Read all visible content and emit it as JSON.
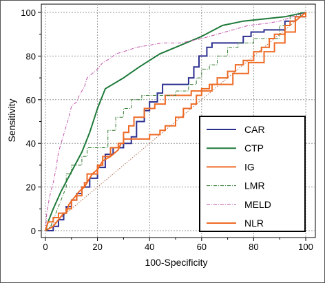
{
  "chart_data": {
    "type": "line",
    "xlabel": "100-Specificity",
    "ylabel": "Sensitivity",
    "xlim": [
      0,
      100
    ],
    "ylim": [
      0,
      100
    ],
    "x_ticks": [
      "0",
      "20",
      "40",
      "60",
      "80",
      "100"
    ],
    "y_ticks": [
      "0",
      "20",
      "40",
      "60",
      "80",
      "100"
    ],
    "grid": true,
    "legend_position": "bottom-right",
    "reference_line": {
      "from": [
        0,
        0
      ],
      "to": [
        100,
        100
      ],
      "color": "#b06a4a",
      "style": "dotted"
    },
    "series": [
      {
        "name": "CAR",
        "color": "#2b2f8f",
        "style": "solid",
        "points": [
          [
            0,
            0
          ],
          [
            3,
            0
          ],
          [
            3,
            2
          ],
          [
            5,
            2
          ],
          [
            5,
            5
          ],
          [
            7,
            5
          ],
          [
            7,
            8
          ],
          [
            8,
            8
          ],
          [
            8,
            11
          ],
          [
            10,
            11
          ],
          [
            10,
            14
          ],
          [
            12,
            14
          ],
          [
            12,
            17
          ],
          [
            14,
            17
          ],
          [
            14,
            20
          ],
          [
            17,
            20
          ],
          [
            17,
            24
          ],
          [
            20,
            24
          ],
          [
            20,
            29
          ],
          [
            23,
            29
          ],
          [
            23,
            35
          ],
          [
            26,
            35
          ],
          [
            26,
            38
          ],
          [
            30,
            38
          ],
          [
            30,
            40
          ],
          [
            33,
            40
          ],
          [
            33,
            43
          ],
          [
            35,
            43
          ],
          [
            35,
            50
          ],
          [
            38,
            50
          ],
          [
            38,
            55
          ],
          [
            40,
            55
          ],
          [
            40,
            59
          ],
          [
            43,
            59
          ],
          [
            43,
            63
          ],
          [
            45,
            63
          ],
          [
            45,
            67
          ],
          [
            55,
            67
          ],
          [
            55,
            70
          ],
          [
            57,
            70
          ],
          [
            57,
            75
          ],
          [
            59,
            75
          ],
          [
            59,
            80
          ],
          [
            62,
            80
          ],
          [
            62,
            84
          ],
          [
            64,
            84
          ],
          [
            64,
            86
          ],
          [
            76,
            86
          ],
          [
            76,
            89
          ],
          [
            79,
            89
          ],
          [
            79,
            91
          ],
          [
            84,
            91
          ],
          [
            84,
            92
          ],
          [
            92,
            92
          ],
          [
            92,
            96
          ],
          [
            96,
            96
          ],
          [
            96,
            98
          ],
          [
            100,
            98
          ],
          [
            100,
            100
          ]
        ]
      },
      {
        "name": "CTP",
        "color": "#1f7a3a",
        "style": "solid",
        "points": [
          [
            0,
            0
          ],
          [
            1,
            4
          ],
          [
            3,
            10
          ],
          [
            6,
            18
          ],
          [
            10,
            27
          ],
          [
            14,
            36
          ],
          [
            17,
            45
          ],
          [
            20,
            56
          ],
          [
            23,
            65
          ],
          [
            30,
            70
          ],
          [
            36,
            75
          ],
          [
            44,
            81
          ],
          [
            52,
            85
          ],
          [
            60,
            89
          ],
          [
            68,
            94
          ],
          [
            76,
            96
          ],
          [
            84,
            97
          ],
          [
            92,
            98
          ],
          [
            100,
            100
          ]
        ]
      },
      {
        "name": "IG",
        "color": "#ee6a24",
        "style": "solid",
        "points": [
          [
            0,
            0
          ],
          [
            3,
            2
          ],
          [
            5,
            5
          ],
          [
            7,
            8
          ],
          [
            8,
            8
          ],
          [
            9,
            12
          ],
          [
            11,
            15
          ],
          [
            13,
            18
          ],
          [
            15,
            20
          ],
          [
            18,
            26
          ],
          [
            20,
            28
          ],
          [
            22,
            32
          ],
          [
            25,
            34
          ],
          [
            28,
            37
          ],
          [
            29,
            40
          ],
          [
            30,
            40
          ],
          [
            30,
            45
          ],
          [
            32,
            45
          ],
          [
            32,
            48
          ],
          [
            34,
            48
          ],
          [
            34,
            52
          ],
          [
            38,
            52
          ],
          [
            38,
            56
          ],
          [
            42,
            56
          ],
          [
            42,
            58
          ],
          [
            46,
            58
          ],
          [
            46,
            62
          ],
          [
            56,
            62
          ],
          [
            56,
            64
          ],
          [
            64,
            64
          ],
          [
            64,
            67
          ],
          [
            72,
            67
          ],
          [
            72,
            72
          ],
          [
            78,
            72
          ],
          [
            78,
            77
          ],
          [
            84,
            77
          ],
          [
            84,
            82
          ],
          [
            88,
            82
          ],
          [
            88,
            86
          ],
          [
            92,
            86
          ],
          [
            92,
            91
          ],
          [
            96,
            91
          ],
          [
            96,
            96
          ],
          [
            100,
            100
          ]
        ]
      },
      {
        "name": "LMR",
        "color": "#2f7a2f",
        "style": "dashdot",
        "points": [
          [
            0,
            0
          ],
          [
            2,
            2
          ],
          [
            4,
            8
          ],
          [
            6,
            14
          ],
          [
            8,
            20
          ],
          [
            8,
            26
          ],
          [
            10,
            26
          ],
          [
            10,
            30
          ],
          [
            14,
            30
          ],
          [
            14,
            34
          ],
          [
            16,
            34
          ],
          [
            16,
            38
          ],
          [
            24,
            38
          ],
          [
            24,
            46
          ],
          [
            27,
            46
          ],
          [
            27,
            52
          ],
          [
            30,
            52
          ],
          [
            30,
            56
          ],
          [
            33,
            56
          ],
          [
            33,
            60
          ],
          [
            37,
            60
          ],
          [
            37,
            62
          ],
          [
            50,
            62
          ],
          [
            50,
            64
          ],
          [
            55,
            64
          ],
          [
            55,
            67
          ],
          [
            58,
            67
          ],
          [
            58,
            70
          ],
          [
            60,
            70
          ],
          [
            60,
            74
          ],
          [
            63,
            74
          ],
          [
            63,
            76
          ],
          [
            66,
            76
          ],
          [
            66,
            80
          ],
          [
            70,
            80
          ],
          [
            70,
            84
          ],
          [
            74,
            84
          ],
          [
            74,
            86
          ],
          [
            80,
            86
          ],
          [
            80,
            88
          ],
          [
            90,
            88
          ],
          [
            90,
            94
          ],
          [
            94,
            94
          ],
          [
            94,
            98
          ],
          [
            98,
            98
          ],
          [
            98,
            100
          ],
          [
            100,
            100
          ]
        ]
      },
      {
        "name": "MELD",
        "color": "#c04fa8",
        "style": "dashdot",
        "points": [
          [
            0,
            0
          ],
          [
            0.5,
            8
          ],
          [
            1.5,
            15
          ],
          [
            2.5,
            20
          ],
          [
            3,
            22
          ],
          [
            4,
            28
          ],
          [
            4.5,
            32
          ],
          [
            5,
            36
          ],
          [
            6,
            40
          ],
          [
            7,
            44
          ],
          [
            8,
            48
          ],
          [
            9,
            52
          ],
          [
            10,
            57
          ],
          [
            12,
            59
          ],
          [
            13,
            62
          ],
          [
            15,
            66
          ],
          [
            16,
            70
          ],
          [
            18,
            72
          ],
          [
            20,
            74
          ],
          [
            22,
            77
          ],
          [
            25,
            79
          ],
          [
            27,
            81
          ],
          [
            30,
            82
          ],
          [
            35,
            84
          ],
          [
            40,
            85
          ],
          [
            45,
            86
          ],
          [
            52,
            86
          ],
          [
            56,
            87
          ],
          [
            60,
            88
          ],
          [
            66,
            90
          ],
          [
            72,
            92
          ],
          [
            78,
            94
          ],
          [
            85,
            95
          ],
          [
            90,
            96
          ],
          [
            95,
            98
          ],
          [
            100,
            100
          ]
        ]
      },
      {
        "name": "NLR",
        "color": "#ee6a24",
        "style": "solid",
        "points": [
          [
            0,
            0
          ],
          [
            1,
            4
          ],
          [
            3,
            4
          ],
          [
            3,
            6
          ],
          [
            5,
            6
          ],
          [
            5,
            8
          ],
          [
            8,
            8
          ],
          [
            8,
            10
          ],
          [
            10,
            10
          ],
          [
            10,
            14
          ],
          [
            12,
            14
          ],
          [
            12,
            16
          ],
          [
            14,
            16
          ],
          [
            14,
            20
          ],
          [
            15,
            20
          ],
          [
            15,
            22
          ],
          [
            16,
            22
          ],
          [
            16,
            26
          ],
          [
            20,
            26
          ],
          [
            20,
            30
          ],
          [
            22,
            30
          ],
          [
            22,
            34
          ],
          [
            25,
            34
          ],
          [
            25,
            38
          ],
          [
            28,
            38
          ],
          [
            28,
            40
          ],
          [
            30,
            40
          ],
          [
            30,
            42
          ],
          [
            40,
            42
          ],
          [
            40,
            44
          ],
          [
            44,
            44
          ],
          [
            44,
            46
          ],
          [
            46,
            46
          ],
          [
            46,
            48
          ],
          [
            50,
            48
          ],
          [
            50,
            52
          ],
          [
            53,
            52
          ],
          [
            53,
            56
          ],
          [
            56,
            56
          ],
          [
            56,
            58
          ],
          [
            58,
            58
          ],
          [
            58,
            62
          ],
          [
            60,
            62
          ],
          [
            60,
            65
          ],
          [
            63,
            65
          ],
          [
            63,
            67
          ],
          [
            66,
            67
          ],
          [
            66,
            70
          ],
          [
            70,
            70
          ],
          [
            70,
            73
          ],
          [
            73,
            73
          ],
          [
            73,
            76
          ],
          [
            76,
            76
          ],
          [
            76,
            78
          ],
          [
            80,
            78
          ],
          [
            80,
            82
          ],
          [
            83,
            82
          ],
          [
            83,
            84
          ],
          [
            86,
            84
          ],
          [
            86,
            88
          ],
          [
            88,
            88
          ],
          [
            88,
            90
          ],
          [
            92,
            90
          ],
          [
            92,
            94
          ],
          [
            94,
            94
          ],
          [
            94,
            96
          ],
          [
            96,
            96
          ],
          [
            96,
            98
          ],
          [
            100,
            98
          ],
          [
            100,
            100
          ]
        ]
      }
    ]
  }
}
